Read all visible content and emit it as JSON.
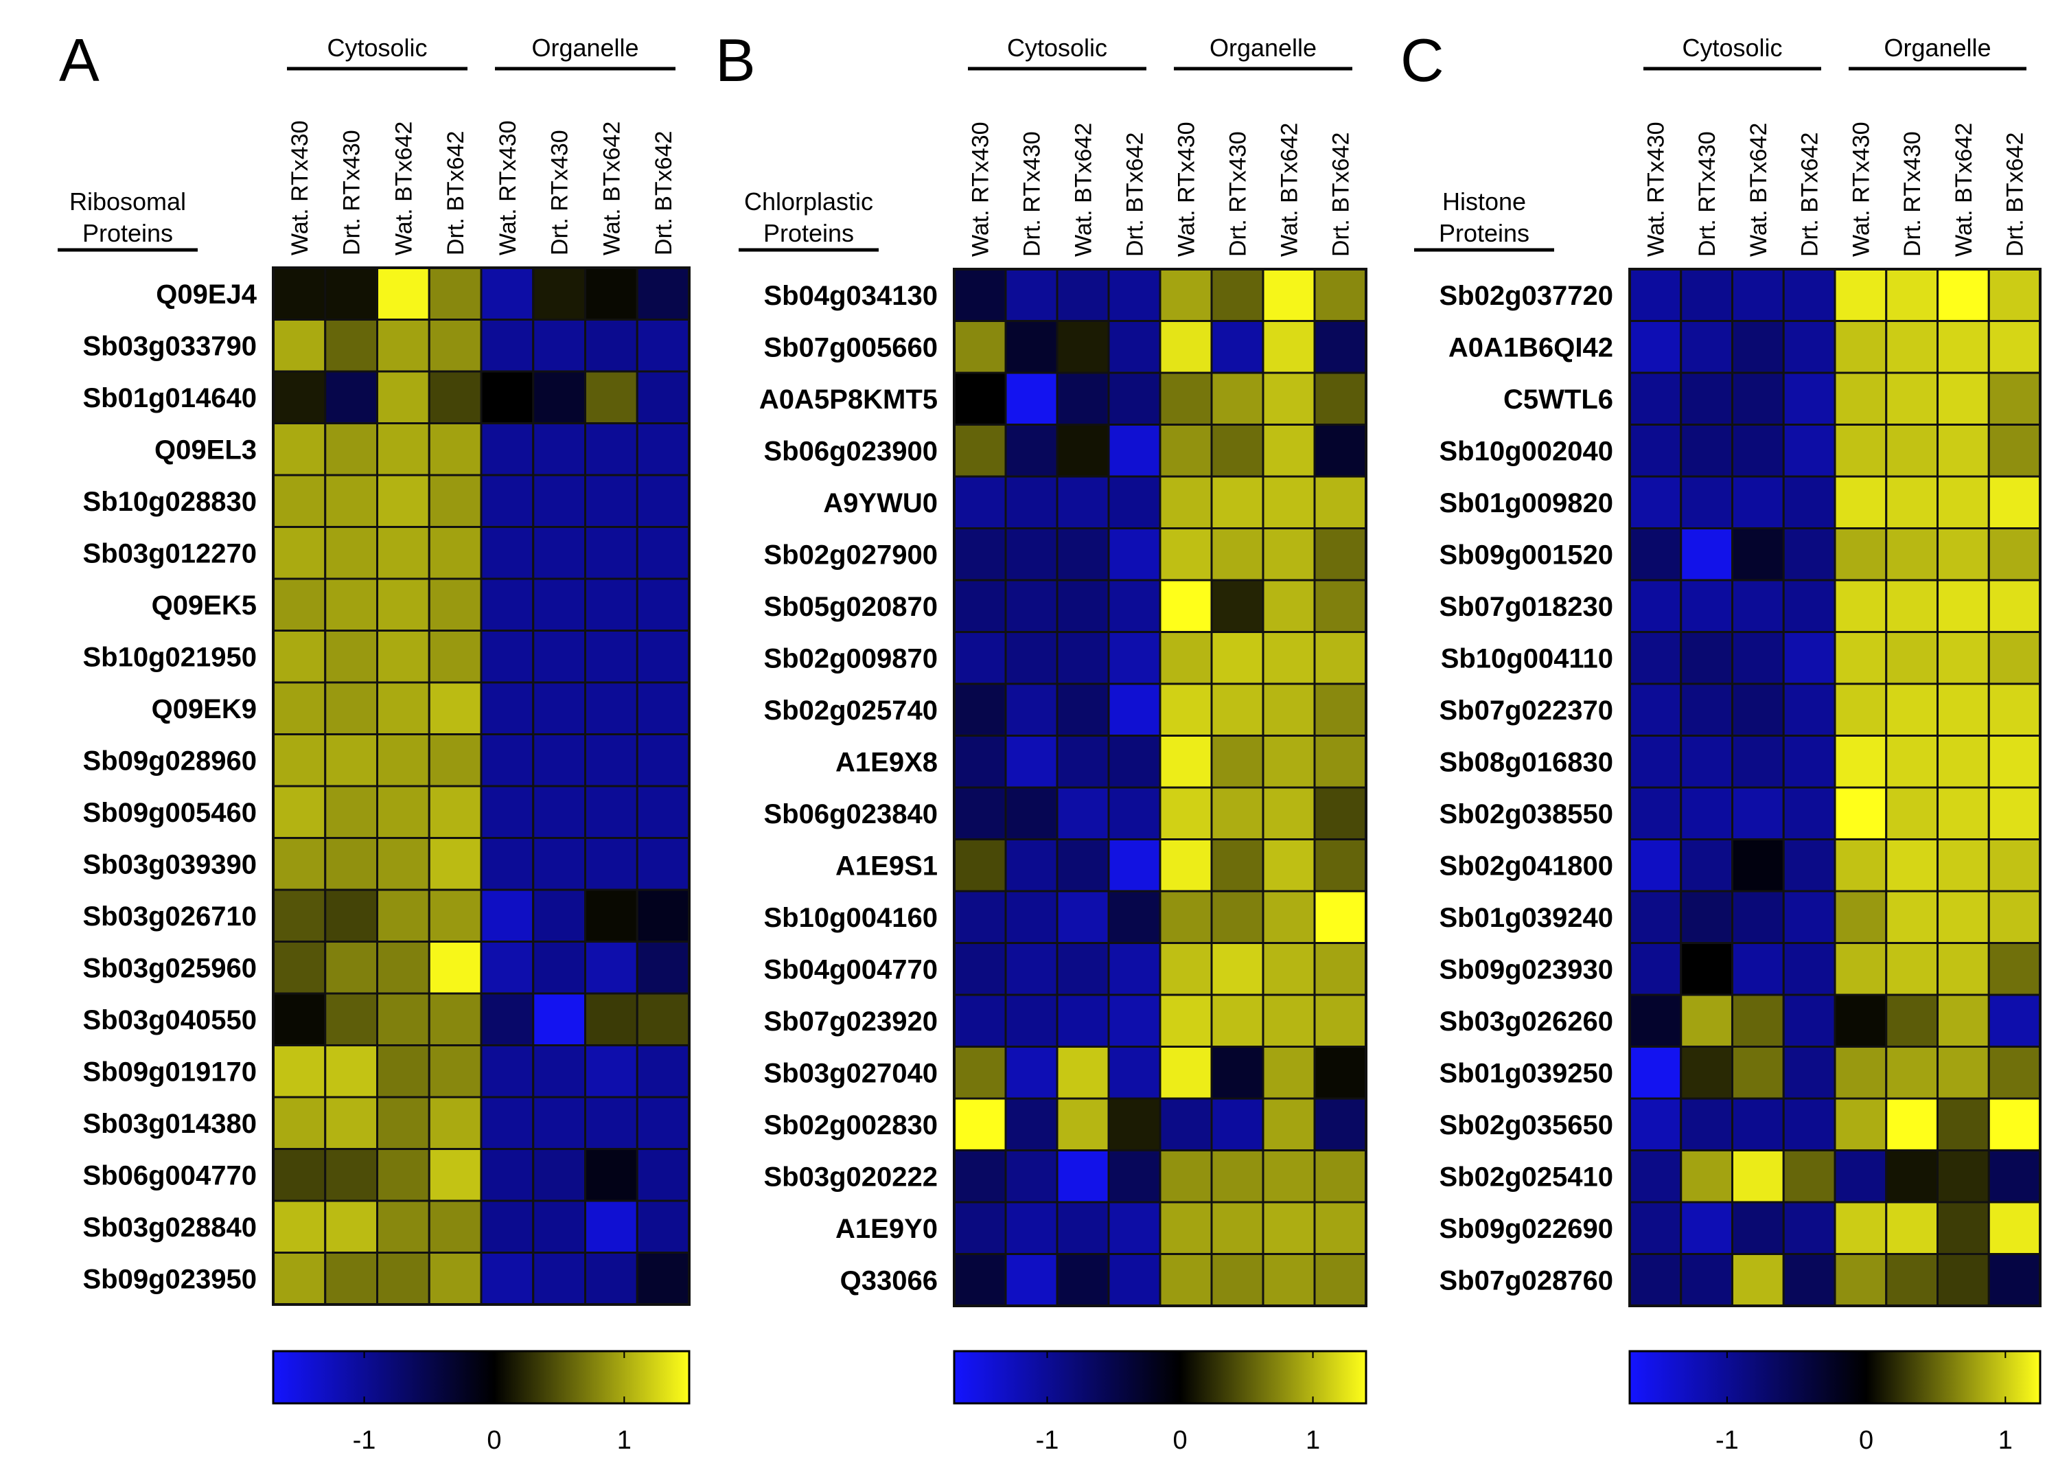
{
  "colors": {
    "negative": "#1414ff",
    "zero": "#000000",
    "positive": "#ffff1a",
    "border": "#111111"
  },
  "chart_data": [
    {
      "type": "heatmap",
      "panel": "A",
      "title": "Ribosomal Proteins",
      "title_lines": [
        "Ribosomal",
        "Proteins"
      ],
      "groups": [
        {
          "label": "Cytosolic",
          "columns": [
            0,
            3
          ]
        },
        {
          "label": "Organelle",
          "columns": [
            4,
            7
          ]
        }
      ],
      "columns": [
        "Wat. RTx430",
        "Drt. RTx430",
        "Wat. BTx642",
        "Drt. BTx642",
        "Wat. RTx430",
        "Drt. RTx430",
        "Wat. BTx642",
        "Drt. BTx642"
      ],
      "rows": [
        "Q09EJ4",
        "Sb03g033790",
        "Sb01g014640",
        "Q09EL3",
        "Sb10g028830",
        "Sb03g012270",
        "Q09EK5",
        "Sb10g021950",
        "Q09EK9",
        "Sb09g028960",
        "Sb09g005460",
        "Sb03g039390",
        "Sb03g026710",
        "Sb03g025960",
        "Sb03g040550",
        "Sb09g019170",
        "Sb03g014380",
        "Sb06g004770",
        "Sb03g028840",
        "Sb09g023950"
      ],
      "values": [
        [
          0.1,
          0.1,
          1.45,
          0.8,
          -1.1,
          0.15,
          0.05,
          -0.5
        ],
        [
          1.0,
          0.6,
          0.95,
          0.85,
          -1.0,
          -1.0,
          -0.95,
          -1.0
        ],
        [
          0.15,
          -0.5,
          1.0,
          0.4,
          0.0,
          -0.3,
          0.55,
          -0.95
        ],
        [
          1.0,
          0.9,
          1.0,
          0.95,
          -1.0,
          -1.0,
          -1.0,
          -1.0
        ],
        [
          0.95,
          0.95,
          1.05,
          0.9,
          -1.0,
          -1.0,
          -1.0,
          -1.0
        ],
        [
          1.0,
          0.95,
          1.0,
          0.95,
          -1.0,
          -1.0,
          -1.0,
          -1.0
        ],
        [
          0.9,
          0.95,
          1.0,
          0.9,
          -1.0,
          -1.0,
          -1.0,
          -1.0
        ],
        [
          1.0,
          0.9,
          1.0,
          0.9,
          -1.0,
          -1.0,
          -1.0,
          -1.0
        ],
        [
          0.95,
          0.9,
          1.0,
          1.1,
          -1.0,
          -1.0,
          -1.0,
          -1.0
        ],
        [
          1.0,
          1.0,
          0.95,
          0.9,
          -1.0,
          -1.0,
          -1.0,
          -1.0
        ],
        [
          1.05,
          0.9,
          0.95,
          1.05,
          -1.0,
          -1.0,
          -1.0,
          -1.0
        ],
        [
          0.9,
          0.85,
          0.9,
          1.1,
          -1.0,
          -1.0,
          -1.0,
          -1.0
        ],
        [
          0.5,
          0.4,
          0.85,
          0.9,
          -1.3,
          -0.95,
          0.05,
          -0.2
        ],
        [
          0.5,
          0.75,
          0.75,
          1.45,
          -1.15,
          -0.95,
          -1.15,
          -0.6
        ],
        [
          0.05,
          0.55,
          0.75,
          0.8,
          -0.7,
          -1.6,
          0.35,
          0.4
        ],
        [
          1.15,
          1.15,
          0.7,
          0.8,
          -1.0,
          -1.0,
          -1.15,
          -1.0
        ],
        [
          1.0,
          1.05,
          0.75,
          1.0,
          -1.0,
          -1.0,
          -1.0,
          -1.0
        ],
        [
          0.4,
          0.45,
          0.7,
          1.15,
          -0.95,
          -0.9,
          -0.15,
          -0.95
        ],
        [
          1.1,
          1.1,
          0.8,
          0.8,
          -0.95,
          -0.95,
          -1.4,
          -0.95
        ],
        [
          0.95,
          0.7,
          0.7,
          0.9,
          -1.1,
          -1.0,
          -0.95,
          -0.3
        ]
      ],
      "colorbar": {
        "min": -1.7,
        "max": 1.5,
        "ticks": [
          -1,
          0,
          1
        ],
        "tick_labels": [
          "-1",
          "0",
          "1"
        ]
      }
    },
    {
      "type": "heatmap",
      "panel": "B",
      "title": "Chlorplastic Proteins",
      "title_lines": [
        "Chlorplastic",
        "Proteins"
      ],
      "groups": [
        {
          "label": "Cytosolic",
          "columns": [
            0,
            3
          ]
        },
        {
          "label": "Organelle",
          "columns": [
            4,
            7
          ]
        }
      ],
      "columns": [
        "Wat. RTx430",
        "Drt. RTx430",
        "Wat. BTx642",
        "Drt. BTx642",
        "Wat. RTx430",
        "Drt. RTx430",
        "Wat. BTx642",
        "Drt. BTx642"
      ],
      "rows": [
        "Sb04g034130",
        "Sb07g005660",
        "A0A5P8KMT5",
        "Sb06g023900",
        "A9YWU0",
        "Sb02g027900",
        "Sb05g020870",
        "Sb02g009870",
        "Sb02g025740",
        "A1E9X8",
        "Sb06g023840",
        "A1E9S1",
        "Sb10g004160",
        "Sb04g004770",
        "Sb07g023920",
        "Sb03g027040",
        "Sb02g002830",
        "Sb03g020222",
        "A1E9Y0",
        "Q33066"
      ],
      "values": [
        [
          -0.4,
          -1.0,
          -0.9,
          -1.0,
          0.9,
          0.55,
          1.35,
          0.75
        ],
        [
          0.75,
          -0.3,
          0.15,
          -0.95,
          1.25,
          -1.1,
          1.2,
          -0.6
        ],
        [
          0.0,
          -1.6,
          -0.55,
          -0.8,
          0.65,
          0.85,
          1.05,
          0.5
        ],
        [
          0.55,
          -0.6,
          0.1,
          -1.4,
          0.8,
          0.6,
          1.05,
          -0.3
        ],
        [
          -1.0,
          -0.95,
          -1.0,
          -0.95,
          1.0,
          1.05,
          1.05,
          1.0
        ],
        [
          -0.75,
          -0.8,
          -0.75,
          -1.2,
          1.05,
          0.95,
          1.0,
          0.6
        ],
        [
          -0.8,
          -0.85,
          -0.8,
          -1.0,
          1.55,
          0.2,
          1.0,
          0.7
        ],
        [
          -0.95,
          -0.85,
          -0.85,
          -1.15,
          1.0,
          1.1,
          1.05,
          1.0
        ],
        [
          -0.5,
          -1.0,
          -0.7,
          -1.4,
          1.15,
          1.05,
          1.0,
          0.75
        ],
        [
          -0.7,
          -1.2,
          -0.85,
          -0.8,
          1.3,
          0.8,
          0.95,
          0.8
        ],
        [
          -0.6,
          -0.55,
          -1.1,
          -1.0,
          1.15,
          0.95,
          1.0,
          0.4
        ],
        [
          0.4,
          -0.95,
          -0.75,
          -1.5,
          1.3,
          0.6,
          1.05,
          0.55
        ],
        [
          -0.9,
          -0.95,
          -1.15,
          -0.5,
          0.8,
          0.7,
          0.95,
          1.4
        ],
        [
          -0.85,
          -1.0,
          -0.9,
          -1.1,
          1.05,
          1.15,
          1.0,
          0.9
        ],
        [
          -0.95,
          -0.95,
          -1.05,
          -1.15,
          1.15,
          1.05,
          1.0,
          0.95
        ],
        [
          0.65,
          -1.2,
          1.1,
          -1.1,
          1.3,
          -0.3,
          0.9,
          0.05
        ],
        [
          1.45,
          -0.75,
          1.0,
          0.15,
          -0.9,
          -1.05,
          0.9,
          -0.65
        ],
        [
          -0.65,
          -0.9,
          -1.55,
          -0.6,
          0.8,
          0.8,
          0.85,
          0.8
        ],
        [
          -0.85,
          -1.05,
          -0.95,
          -1.1,
          0.9,
          0.9,
          0.95,
          0.9
        ],
        [
          -0.4,
          -1.3,
          -0.45,
          -1.05,
          0.85,
          0.75,
          0.85,
          0.75
        ]
      ],
      "colorbar": {
        "min": -1.7,
        "max": 1.4,
        "ticks": [
          -1,
          0,
          1
        ],
        "tick_labels": [
          "-1",
          "0",
          "1"
        ]
      }
    },
    {
      "type": "heatmap",
      "panel": "C",
      "title": "Histone Proteins",
      "title_lines": [
        "Histone",
        "Proteins"
      ],
      "groups": [
        {
          "label": "Cytosolic",
          "columns": [
            0,
            3
          ]
        },
        {
          "label": "Organelle",
          "columns": [
            4,
            7
          ]
        }
      ],
      "columns": [
        "Wat. RTx430",
        "Drt. RTx430",
        "Wat. BTx642",
        "Drt. BTx642",
        "Wat. RTx430",
        "Drt. RTx430",
        "Wat. BTx642",
        "Drt. BTx642"
      ],
      "rows": [
        "Sb02g037720",
        "A0A1B6QI42",
        "C5WTL6",
        "Sb10g002040",
        "Sb01g009820",
        "Sb09g001520",
        "Sb07g018230",
        "Sb10g004110",
        "Sb07g022370",
        "Sb08g016830",
        "Sb02g038550",
        "Sb02g041800",
        "Sb01g039240",
        "Sb09g023930",
        "Sb03g026260",
        "Sb01g039250",
        "Sb02g035650",
        "Sb02g025410",
        "Sb09g022690",
        "Sb07g028760"
      ],
      "values": [
        [
          -1.05,
          -0.95,
          -1.0,
          -1.0,
          1.15,
          1.1,
          1.4,
          1.0
        ],
        [
          -1.2,
          -1.0,
          -0.75,
          -1.0,
          0.95,
          1.0,
          1.05,
          1.05
        ],
        [
          -0.95,
          -0.8,
          -0.75,
          -1.1,
          0.95,
          1.0,
          1.05,
          0.75
        ],
        [
          -0.95,
          -0.8,
          -0.8,
          -1.1,
          0.95,
          0.95,
          1.0,
          0.7
        ],
        [
          -1.1,
          -1.0,
          -1.05,
          -0.95,
          1.1,
          1.05,
          1.05,
          1.15
        ],
        [
          -0.7,
          -1.55,
          -0.3,
          -0.85,
          0.85,
          0.9,
          0.95,
          0.85
        ],
        [
          -1.05,
          -1.05,
          -1.0,
          -0.95,
          1.05,
          1.05,
          1.1,
          1.1
        ],
        [
          -0.9,
          -0.75,
          -0.85,
          -1.15,
          1.0,
          0.95,
          1.0,
          0.9
        ],
        [
          -1.0,
          -0.85,
          -0.75,
          -1.0,
          1.0,
          1.05,
          1.05,
          1.05
        ],
        [
          -1.0,
          -1.0,
          -0.9,
          -1.0,
          1.15,
          1.05,
          1.05,
          1.1
        ],
        [
          -1.0,
          -1.05,
          -1.1,
          -1.0,
          1.4,
          1.0,
          1.05,
          1.1
        ],
        [
          -1.3,
          -0.9,
          -0.1,
          -0.9,
          0.95,
          1.05,
          1.0,
          0.95
        ],
        [
          -0.9,
          -0.65,
          -0.8,
          -1.0,
          0.75,
          1.0,
          1.0,
          0.95
        ],
        [
          -0.95,
          0.0,
          -1.05,
          -0.95,
          0.9,
          0.95,
          0.95,
          0.55
        ],
        [
          -0.3,
          0.8,
          0.5,
          -0.95,
          0.05,
          0.45,
          0.85,
          -1.15
        ],
        [
          -1.6,
          0.2,
          0.55,
          -0.9,
          0.75,
          0.8,
          0.8,
          0.55
        ],
        [
          -1.2,
          -0.9,
          -0.95,
          -0.95,
          0.85,
          1.3,
          0.4,
          1.55
        ],
        [
          -0.9,
          0.8,
          1.15,
          0.5,
          -0.85,
          0.1,
          0.2,
          -0.55
        ],
        [
          -0.9,
          -1.2,
          -0.75,
          -0.9,
          1.0,
          1.05,
          0.3,
          1.15
        ],
        [
          -0.75,
          -0.8,
          0.9,
          -0.6,
          0.7,
          0.45,
          0.3,
          -0.45
        ]
      ],
      "colorbar": {
        "min": -1.7,
        "max": 1.25,
        "ticks": [
          -1,
          0,
          1
        ],
        "tick_labels": [
          "-1",
          "0",
          "1"
        ]
      }
    }
  ]
}
